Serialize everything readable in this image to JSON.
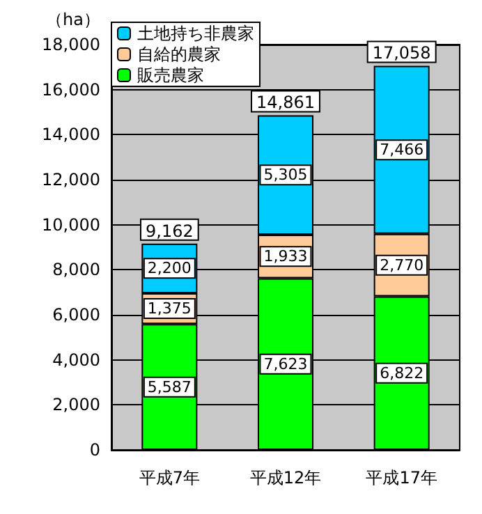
{
  "chart_data": {
    "type": "bar",
    "stacked": true,
    "ylabel": "（ha）",
    "categories": [
      "平成7年",
      "平成12年",
      "平成17年"
    ],
    "series": [
      {
        "name": "販売農家",
        "color": "#00ff00",
        "values": [
          5587,
          7623,
          6822
        ],
        "value_labels": [
          "5,587",
          "7,623",
          "6,822"
        ]
      },
      {
        "name": "自給的農家",
        "color": "#ffcc99",
        "values": [
          1375,
          1933,
          2770
        ],
        "value_labels": [
          "1,375",
          "1,933",
          "2,770"
        ]
      },
      {
        "name": "土地持ち非農家",
        "color": "#00ccff",
        "values": [
          2200,
          5305,
          7466
        ],
        "value_labels": [
          "2,200",
          "5,305",
          "7,466"
        ]
      }
    ],
    "totals": [
      "9,162",
      "14,861",
      "17,058"
    ],
    "ylim": [
      0,
      18000
    ],
    "yticks": [
      0,
      {
        "value": 2000,
        "label": "2,000"
      },
      {
        "value": 4000,
        "label": "4,000"
      },
      {
        "value": 6000,
        "label": "6,000"
      },
      {
        "value": 8000,
        "label": "8,000"
      },
      {
        "value": 10000,
        "label": "10,000"
      },
      {
        "value": 12000,
        "label": "12,000"
      },
      {
        "value": 14000,
        "label": "14,000"
      },
      {
        "value": 16000,
        "label": "16,000"
      },
      {
        "value": 18000,
        "label": "18,000"
      }
    ],
    "grid": "y",
    "legend": "top left"
  }
}
